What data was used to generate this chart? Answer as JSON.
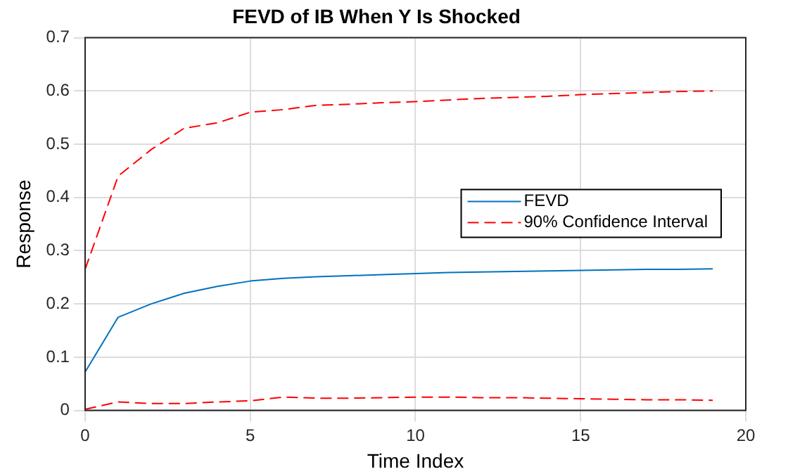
{
  "chart_data": {
    "type": "line",
    "title": "FEVD of IB When Y Is Shocked",
    "xlabel": "Time Index",
    "ylabel": "Response",
    "x": [
      0,
      1,
      2,
      3,
      4,
      5,
      6,
      7,
      8,
      9,
      10,
      11,
      12,
      13,
      14,
      15,
      16,
      17,
      18,
      19
    ],
    "series": [
      {
        "name": "FEVD",
        "color": "#0072bd",
        "line_style": "solid",
        "values": [
          0.072,
          0.175,
          0.2,
          0.22,
          0.233,
          0.243,
          0.248,
          0.251,
          0.253,
          0.255,
          0.257,
          0.259,
          0.26,
          0.261,
          0.262,
          0.263,
          0.264,
          0.265,
          0.265,
          0.266
        ]
      },
      {
        "name": "90% Confidence Interval",
        "color": "#ff0000",
        "line_style": "dashed",
        "values": [
          0.265,
          0.44,
          0.49,
          0.53,
          0.54,
          0.56,
          0.565,
          0.573,
          0.575,
          0.578,
          0.58,
          0.583,
          0.586,
          0.588,
          0.59,
          0.593,
          0.595,
          0.597,
          0.599,
          0.6
        ]
      },
      {
        "color": "#ff0000",
        "line_style": "dashed",
        "values": [
          0.002,
          0.016,
          0.013,
          0.013,
          0.016,
          0.018,
          0.025,
          0.023,
          0.023,
          0.024,
          0.025,
          0.025,
          0.024,
          0.024,
          0.023,
          0.022,
          0.021,
          0.02,
          0.02,
          0.019
        ]
      }
    ],
    "xlim": [
      0,
      20
    ],
    "xticks": [
      0,
      5,
      10,
      15,
      20
    ],
    "ylim": [
      0,
      0.7
    ],
    "yticks": [
      0,
      0.1,
      0.2,
      0.3,
      0.4,
      0.5,
      0.6,
      0.7
    ],
    "grid": true,
    "legend": "right",
    "marker": "none"
  }
}
